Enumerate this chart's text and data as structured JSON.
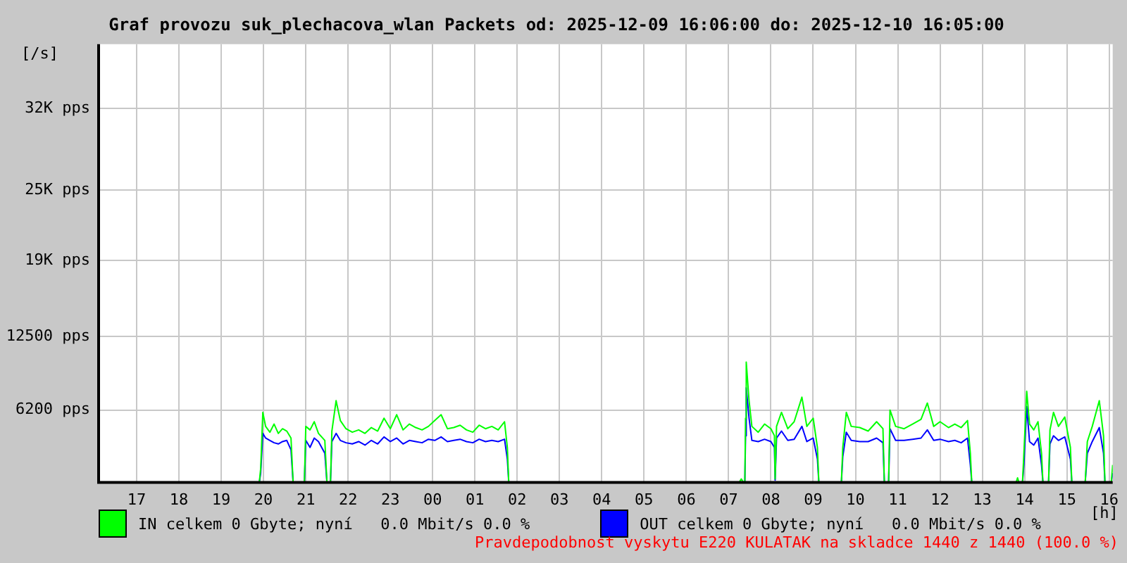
{
  "chart_data": {
    "type": "line",
    "title": "Graf provozu suk_plechacova_wlan Packets od: 2025-12-09 16:06:00 do: 2025-12-10 16:05:00",
    "ylabel": "[/s]",
    "xlabel": "[h]",
    "x": [
      "2025-12-09T16:06",
      "2025-12-09T19:54",
      "2025-12-09T19:56",
      "2025-12-09T19:59",
      "2025-12-09T20:03",
      "2025-12-09T20:09",
      "2025-12-09T20:15",
      "2025-12-09T20:21",
      "2025-12-09T20:27",
      "2025-12-09T20:33",
      "2025-12-09T20:39",
      "2025-12-09T20:42",
      "2025-12-09T20:58",
      "2025-12-09T21:00",
      "2025-12-09T21:06",
      "2025-12-09T21:12",
      "2025-12-09T21:18",
      "2025-12-09T21:27",
      "2025-12-09T21:30",
      "2025-12-09T21:35",
      "2025-12-09T21:37",
      "2025-12-09T21:43",
      "2025-12-09T21:49",
      "2025-12-09T21:57",
      "2025-12-09T22:06",
      "2025-12-09T22:15",
      "2025-12-09T22:24",
      "2025-12-09T22:33",
      "2025-12-09T22:42",
      "2025-12-09T22:51",
      "2025-12-09T23:00",
      "2025-12-09T23:09",
      "2025-12-09T23:18",
      "2025-12-09T23:27",
      "2025-12-09T23:36",
      "2025-12-09T23:45",
      "2025-12-09T23:54",
      "2025-12-10T00:03",
      "2025-12-10T00:12",
      "2025-12-10T00:21",
      "2025-12-10T00:30",
      "2025-12-10T00:39",
      "2025-12-10T00:48",
      "2025-12-10T00:57",
      "2025-12-10T01:06",
      "2025-12-10T01:15",
      "2025-12-10T01:24",
      "2025-12-10T01:33",
      "2025-12-10T01:42",
      "2025-12-10T01:46",
      "2025-12-10T01:48",
      "2025-12-10T07:15",
      "2025-12-10T07:18",
      "2025-12-10T07:21",
      "2025-12-10T07:23",
      "2025-12-10T07:24",
      "2025-12-10T07:25",
      "2025-12-10T07:29",
      "2025-12-10T07:33",
      "2025-12-10T07:42",
      "2025-12-10T07:51",
      "2025-12-10T08:00",
      "2025-12-10T08:05",
      "2025-12-10T08:06",
      "2025-12-10T08:08",
      "2025-12-10T08:15",
      "2025-12-10T08:24",
      "2025-12-10T08:33",
      "2025-12-10T08:44",
      "2025-12-10T08:51",
      "2025-12-10T09:00",
      "2025-12-10T09:06",
      "2025-12-10T09:08",
      "2025-12-10T09:40",
      "2025-12-10T09:42",
      "2025-12-10T09:47",
      "2025-12-10T09:54",
      "2025-12-10T10:06",
      "2025-12-10T10:18",
      "2025-12-10T10:30",
      "2025-12-10T10:39",
      "2025-12-10T10:41",
      "2025-12-10T10:47",
      "2025-12-10T10:49",
      "2025-12-10T10:57",
      "2025-12-10T11:09",
      "2025-12-10T11:21",
      "2025-12-10T11:33",
      "2025-12-10T11:42",
      "2025-12-10T11:51",
      "2025-12-10T12:00",
      "2025-12-10T12:12",
      "2025-12-10T12:21",
      "2025-12-10T12:30",
      "2025-12-10T12:39",
      "2025-12-10T12:43",
      "2025-12-10T12:45",
      "2025-12-10T13:48",
      "2025-12-10T13:50",
      "2025-12-10T13:52",
      "2025-12-10T13:57",
      "2025-12-10T13:59",
      "2025-12-10T14:03",
      "2025-12-10T14:07",
      "2025-12-10T14:13",
      "2025-12-10T14:19",
      "2025-12-10T14:24",
      "2025-12-10T14:26",
      "2025-12-10T14:34",
      "2025-12-10T14:36",
      "2025-12-10T14:41",
      "2025-12-10T14:48",
      "2025-12-10T14:57",
      "2025-12-10T15:05",
      "2025-12-10T15:07",
      "2025-12-10T15:26",
      "2025-12-10T15:29",
      "2025-12-10T15:36",
      "2025-12-10T15:46",
      "2025-12-10T15:52",
      "2025-12-10T15:54",
      "2025-12-10T16:03",
      "2025-12-10T16:05"
    ],
    "series": [
      {
        "name": "IN celkem 0 Gbyte; nyní   0.0 Mbit/s 0.0 %",
        "color": "#00ff00",
        "values": [
          0,
          0,
          1200,
          6000,
          4800,
          4300,
          5000,
          4200,
          4600,
          4400,
          3800,
          0,
          0,
          4800,
          4500,
          5200,
          4200,
          3600,
          0,
          0,
          4400,
          7000,
          5300,
          4600,
          4300,
          4500,
          4200,
          4700,
          4400,
          5500,
          4600,
          5800,
          4500,
          5000,
          4700,
          4500,
          4800,
          5300,
          5800,
          4600,
          4700,
          4900,
          4500,
          4300,
          4900,
          4600,
          4800,
          4500,
          5200,
          3000,
          0,
          0,
          300,
          0,
          0,
          5500,
          10300,
          7000,
          4800,
          4300,
          5000,
          4600,
          4000,
          300,
          4800,
          6000,
          4600,
          5200,
          7300,
          4800,
          5500,
          3000,
          0,
          0,
          3000,
          6000,
          4800,
          4700,
          4400,
          5200,
          4600,
          0,
          0,
          6200,
          4800,
          4600,
          5000,
          5400,
          6800,
          4800,
          5200,
          4700,
          5000,
          4700,
          5300,
          2500,
          0,
          0,
          400,
          0,
          0,
          2500,
          7800,
          5000,
          4500,
          5200,
          2500,
          0,
          0,
          4500,
          6000,
          4800,
          5600,
          3000,
          0,
          0,
          3500,
          4800,
          7000,
          4000,
          0,
          0,
          1500
        ]
      },
      {
        "name": "OUT celkem 0 Gbyte; nyní   0.0 Mbit/s 0.0 %",
        "color": "#0000ff",
        "values": [
          0,
          0,
          800,
          4200,
          3800,
          3600,
          3400,
          3300,
          3500,
          3600,
          2800,
          0,
          0,
          3600,
          3000,
          3800,
          3500,
          2500,
          0,
          0,
          3500,
          4200,
          3600,
          3400,
          3300,
          3500,
          3200,
          3600,
          3300,
          3900,
          3500,
          3800,
          3300,
          3600,
          3500,
          3400,
          3700,
          3600,
          3900,
          3500,
          3600,
          3700,
          3500,
          3400,
          3700,
          3500,
          3600,
          3500,
          3700,
          2000,
          0,
          0,
          null,
          0,
          0,
          4000,
          8100,
          5500,
          3600,
          3500,
          3700,
          3500,
          3000,
          200,
          3800,
          4400,
          3600,
          3700,
          4800,
          3500,
          3800,
          2000,
          0,
          0,
          2200,
          4300,
          3600,
          3500,
          3500,
          3800,
          3400,
          0,
          0,
          4600,
          3600,
          3600,
          3700,
          3800,
          4500,
          3600,
          3700,
          3500,
          3600,
          3400,
          3800,
          1500,
          0,
          0,
          null,
          0,
          0,
          1500,
          6500,
          3500,
          3200,
          3800,
          1500,
          0,
          0,
          3300,
          4000,
          3600,
          3900,
          2000,
          0,
          0,
          2500,
          3500,
          4700,
          2500,
          0,
          0,
          800
        ]
      }
    ],
    "xlim": [
      "2025-12-09T16:06",
      "2025-12-10T16:05"
    ],
    "xticks": [
      {
        "value": "2025-12-09T17:00",
        "label": "17"
      },
      {
        "value": "2025-12-09T18:00",
        "label": "18"
      },
      {
        "value": "2025-12-09T19:00",
        "label": "19"
      },
      {
        "value": "2025-12-09T20:00",
        "label": "20"
      },
      {
        "value": "2025-12-09T21:00",
        "label": "21"
      },
      {
        "value": "2025-12-09T22:00",
        "label": "22"
      },
      {
        "value": "2025-12-09T23:00",
        "label": "23"
      },
      {
        "value": "2025-12-10T00:00",
        "label": "00"
      },
      {
        "value": "2025-12-10T01:00",
        "label": "01"
      },
      {
        "value": "2025-12-10T02:00",
        "label": "02"
      },
      {
        "value": "2025-12-10T03:00",
        "label": "03"
      },
      {
        "value": "2025-12-10T04:00",
        "label": "04"
      },
      {
        "value": "2025-12-10T05:00",
        "label": "05"
      },
      {
        "value": "2025-12-10T06:00",
        "label": "06"
      },
      {
        "value": "2025-12-10T07:00",
        "label": "07"
      },
      {
        "value": "2025-12-10T08:00",
        "label": "08"
      },
      {
        "value": "2025-12-10T09:00",
        "label": "09"
      },
      {
        "value": "2025-12-10T10:00",
        "label": "10"
      },
      {
        "value": "2025-12-10T11:00",
        "label": "11"
      },
      {
        "value": "2025-12-10T12:00",
        "label": "12"
      },
      {
        "value": "2025-12-10T13:00",
        "label": "13"
      },
      {
        "value": "2025-12-10T14:00",
        "label": "14"
      },
      {
        "value": "2025-12-10T15:00",
        "label": "15"
      },
      {
        "value": "2025-12-10T16:00",
        "label": "16"
      }
    ],
    "ylim": [
      0,
      37500
    ],
    "yticks": [
      {
        "value": 6200,
        "label": "6200 pps"
      },
      {
        "value": 12500,
        "label": "12500 pps"
      },
      {
        "value": 19000,
        "label": "19K pps"
      },
      {
        "value": 25000,
        "label": "25K pps"
      },
      {
        "value": 32000,
        "label": "32K pps"
      }
    ],
    "grid": true,
    "legend": "bottom",
    "marker": "none",
    "line_style": "solid",
    "annotations": [
      "Pravdepodobnost vyskytu E220 KULATAK na skladce 1440 z 1440 (100.0 %)"
    ]
  }
}
